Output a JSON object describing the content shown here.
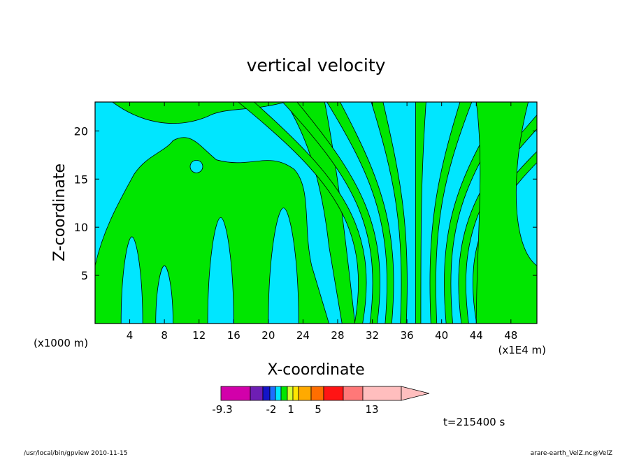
{
  "chart_data": {
    "type": "heatmap",
    "title": "vertical velocity",
    "xlabel": "X-coordinate",
    "ylabel": "Z-coordinate",
    "x_unit_left": "(x1000 m)",
    "x_unit_right": "(x1E4 m)",
    "xlim": [
      0,
      51
    ],
    "ylim": [
      0,
      23
    ],
    "x_ticks": [
      4,
      8,
      12,
      16,
      20,
      24,
      28,
      32,
      36,
      40,
      44,
      48
    ],
    "y_ticks": [
      5,
      10,
      15,
      20
    ],
    "colorbar": {
      "colors": [
        "#d200aa",
        "#6e1eb4",
        "#1414c8",
        "#1e6eff",
        "#00e6ff",
        "#00e600",
        "#d7ff32",
        "#ffe600",
        "#ffaa00",
        "#ff6e00",
        "#ff1414",
        "#ff7878",
        "#ffbebe",
        "#ffbebe"
      ],
      "labels": [
        "-9.3",
        "-2",
        "1",
        "5",
        "13"
      ],
      "extend": "right"
    },
    "field_colors": {
      "negative": "#00e6ff",
      "positive": "#00e600"
    },
    "series": [
      {
        "x": 9.5,
        "z": 16.8,
        "sign": "positive"
      },
      {
        "x": 18.0,
        "z": 6.5,
        "sign": "negative"
      },
      {
        "x": 37.0,
        "z": 5.0,
        "sign": "positive"
      }
    ]
  },
  "annotations": {
    "time": "t=215400 s",
    "footer_left": "/usr/local/bin/gpview  2010-11-15",
    "footer_right": "arare-earth_VelZ.nc@VelZ"
  }
}
